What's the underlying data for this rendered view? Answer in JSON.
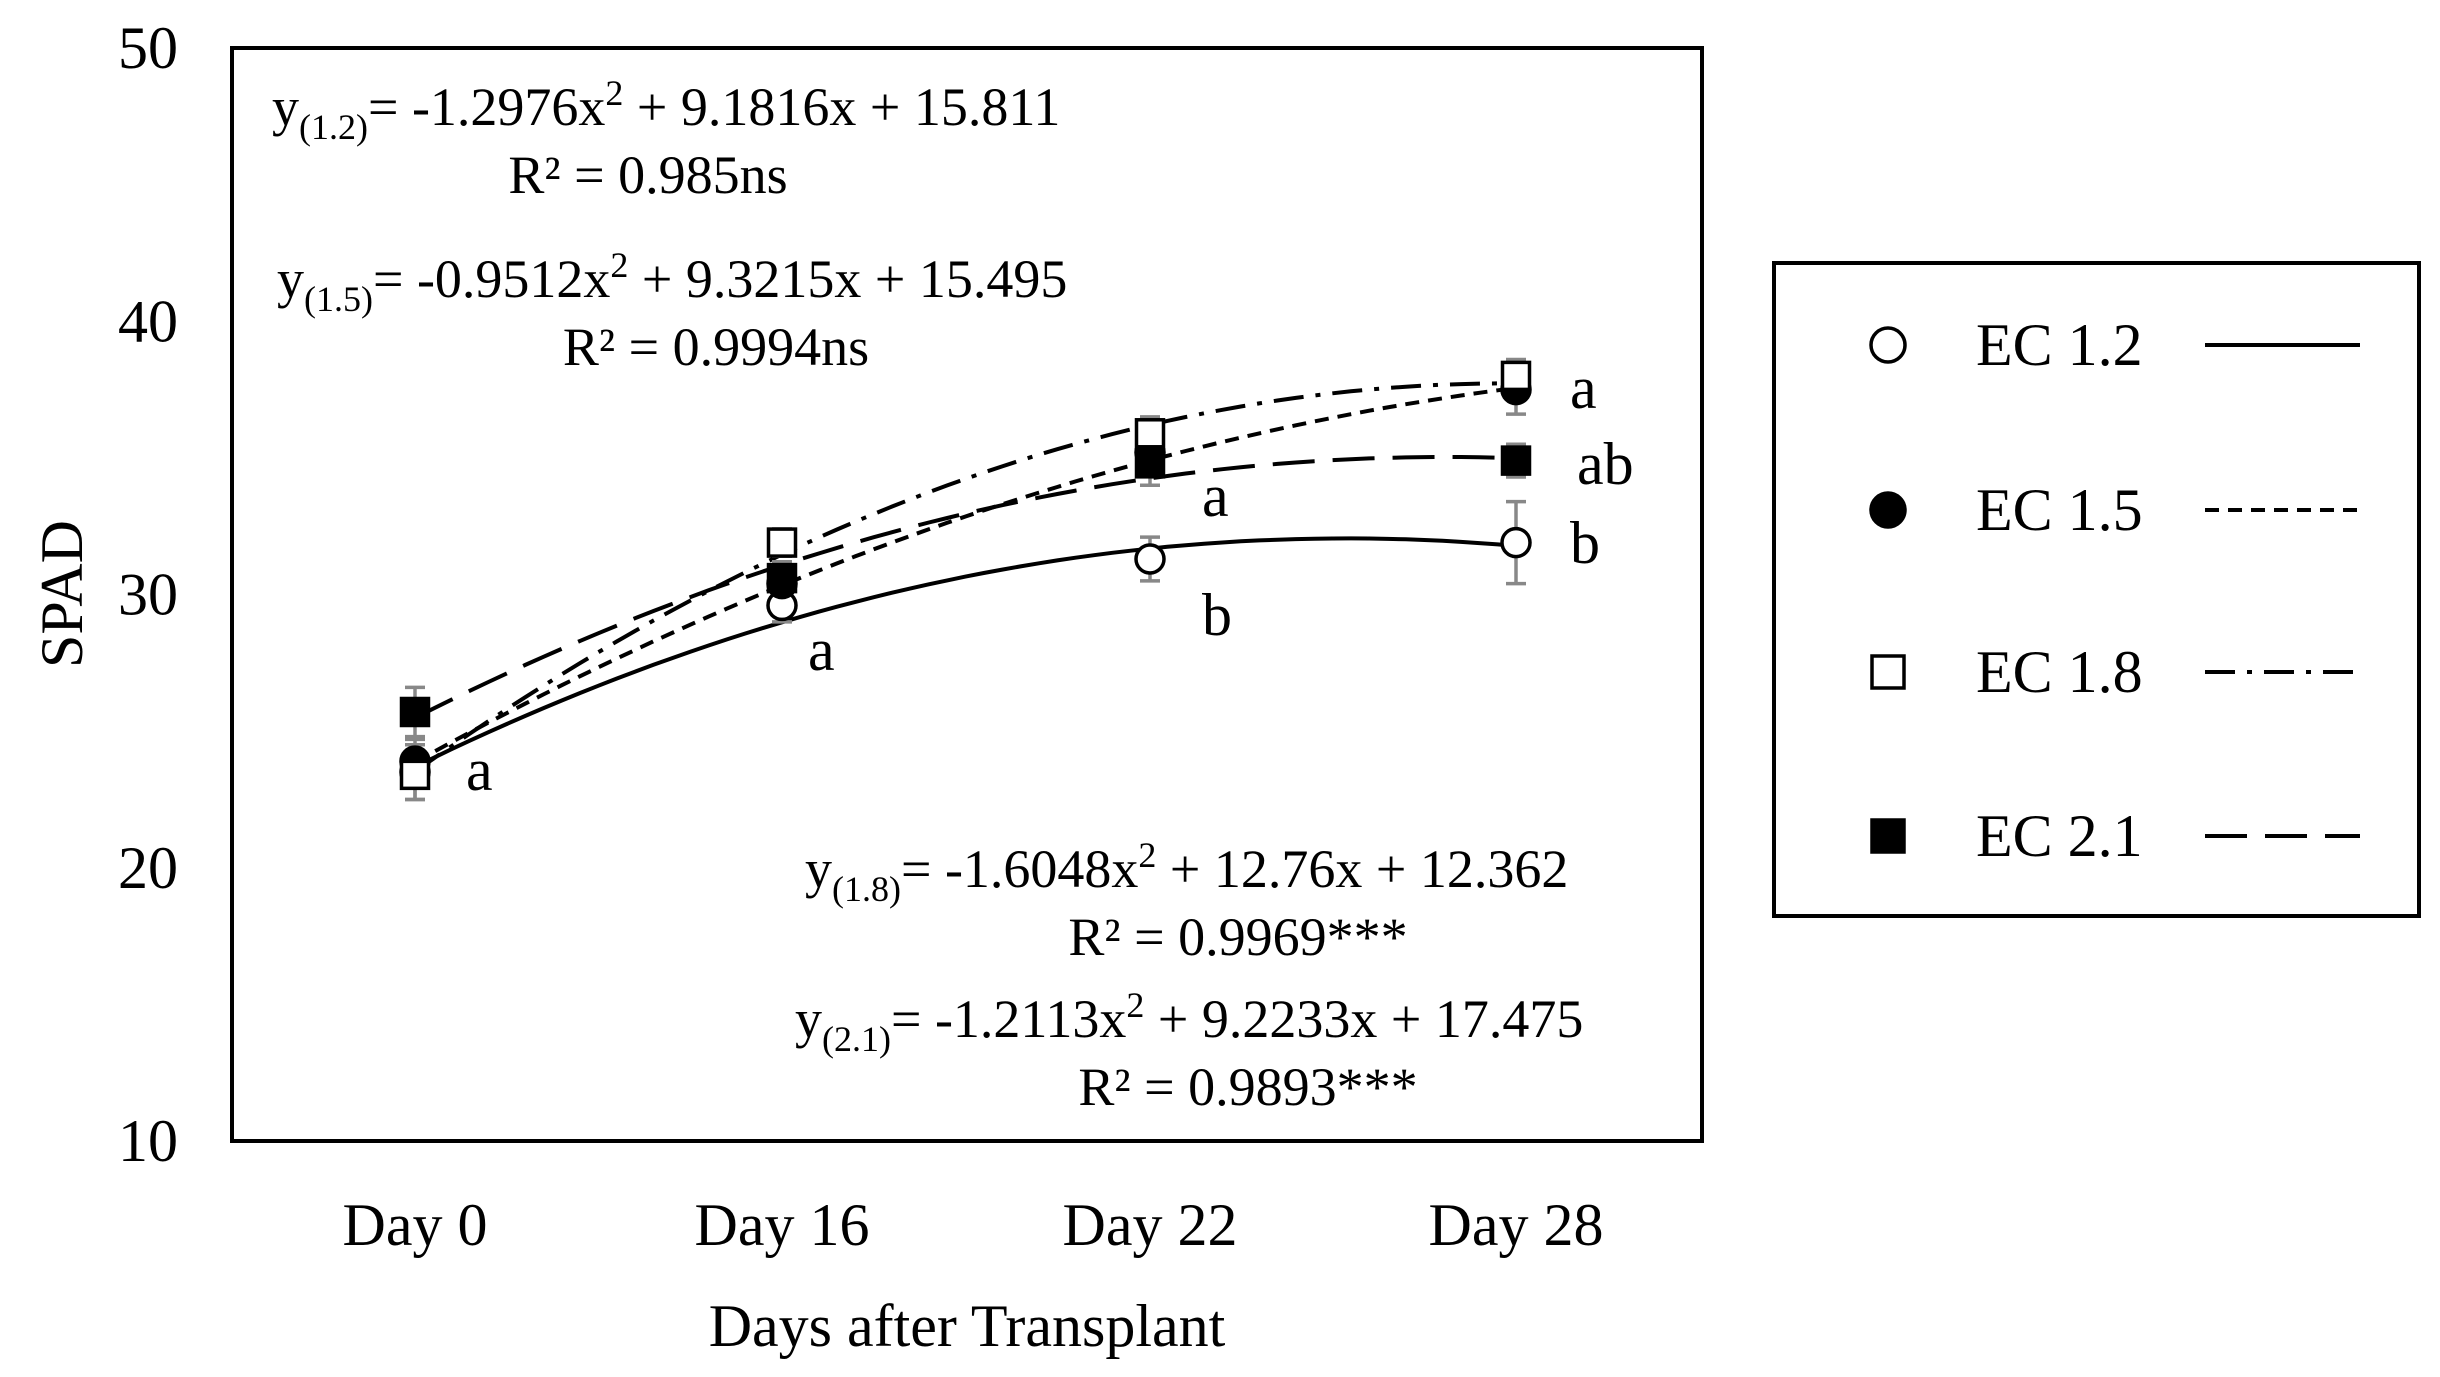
{
  "chart_data": {
    "type": "line",
    "title": "",
    "xlabel": "Days after Transplant",
    "ylabel": "SPAD",
    "ylim": [
      10,
      50
    ],
    "yticks": [
      10,
      20,
      30,
      40,
      50
    ],
    "categories": [
      "Day 0",
      "Day 16",
      "Day 22",
      "Day 28"
    ],
    "legend_position": "right",
    "series": [
      {
        "name": "EC 1.2",
        "marker": "open-circle",
        "line": "solid",
        "values": [
          23.5,
          29.6,
          31.3,
          31.9
        ],
        "errors": [
          1.0,
          0.6,
          0.8,
          1.5
        ],
        "fit": [
          -1.2976,
          9.1816,
          15.811
        ],
        "eq_main": "= -1.2976x",
        "eq_rest": " + 9.1816x + 15.811",
        "eq_sub": "(1.2)",
        "r2": "R² = 0.985ns",
        "letter": "b"
      },
      {
        "name": "EC 1.5",
        "marker": "filled-circle",
        "line": "short-dash",
        "values": [
          23.9,
          30.4,
          35.2,
          37.5
        ],
        "errors": [
          0.8,
          0.6,
          0.7,
          0.9
        ],
        "fit": [
          -0.9512,
          9.3215,
          15.495
        ],
        "eq_main": "= -0.9512x",
        "eq_rest": " + 9.3215x + 15.495",
        "eq_sub": "(1.5)",
        "r2": "R² = 0.9994ns",
        "letter": "a"
      },
      {
        "name": "EC 1.8",
        "marker": "open-square",
        "line": "dash-dot",
        "values": [
          23.4,
          31.9,
          35.9,
          38.0
        ],
        "errors": [
          0.9,
          0.5,
          0.6,
          0.6
        ],
        "fit": [
          -1.6048,
          12.76,
          12.362
        ],
        "eq_main": "= -1.6048x",
        "eq_rest": " + 12.76x + 12.362",
        "eq_sub": "(1.8)",
        "r2": "R² = 0.9969***",
        "letter": "a"
      },
      {
        "name": "EC 2.1",
        "marker": "filled-square",
        "line": "long-dash",
        "values": [
          25.7,
          30.6,
          34.8,
          34.9
        ],
        "errors": [
          0.9,
          0.6,
          0.8,
          0.6
        ],
        "fit": [
          -1.2113,
          9.2233,
          17.475
        ],
        "eq_main": "= -1.2113x",
        "eq_rest": " + 9.2233x + 17.475",
        "eq_sub": "(2.1)",
        "r2": "R² = 0.9893***",
        "letter": "ab"
      }
    ],
    "group_letters": [
      {
        "category": "Day 0",
        "text": "a"
      },
      {
        "category": "Day 16",
        "text": "a"
      },
      {
        "category": "Day 22",
        "text": "a"
      },
      {
        "category": "Day 22",
        "text": "b"
      },
      {
        "category": "Day 28",
        "text": "a"
      },
      {
        "category": "Day 28",
        "text": "ab"
      },
      {
        "category": "Day 28",
        "text": "b"
      }
    ]
  }
}
